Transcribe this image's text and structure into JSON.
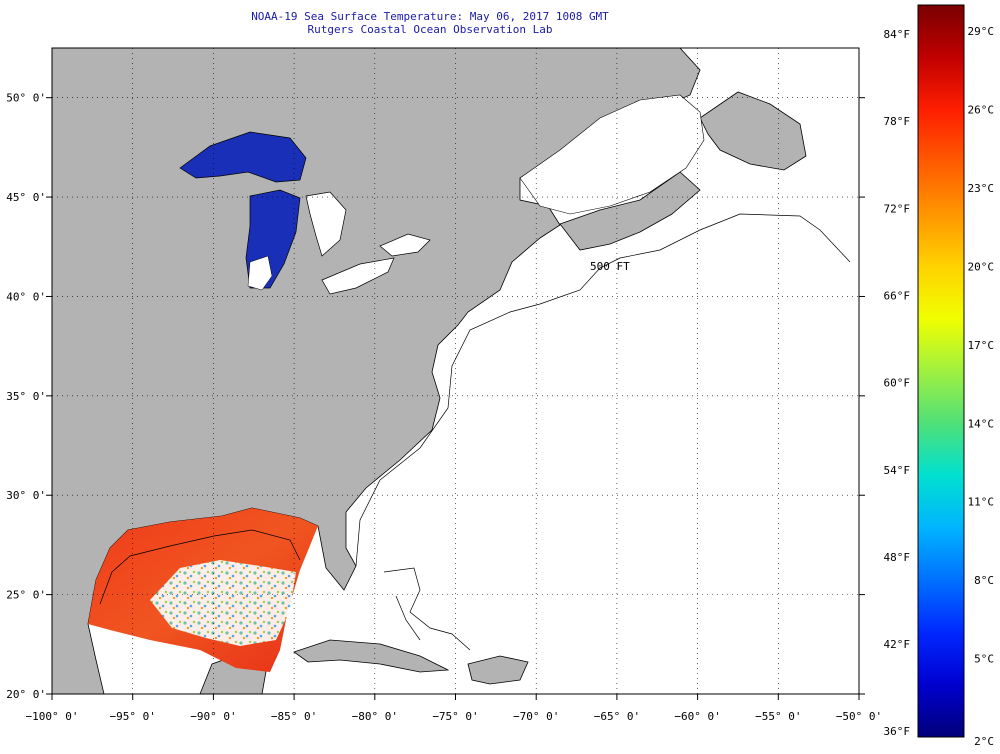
{
  "header": {
    "title": "NOAA-19 Sea Surface Temperature:  May 06, 2017 1008 GMT",
    "subtitle": "Rutgers Coastal Ocean Observation Lab"
  },
  "map": {
    "lon_range": [
      -100,
      -50
    ],
    "lat_range": [
      20,
      52.5
    ],
    "lon_ticks": [
      {
        "value": -100,
        "label": "−100° 0'"
      },
      {
        "value": -95,
        "label": "−95° 0'"
      },
      {
        "value": -90,
        "label": "−90° 0'"
      },
      {
        "value": -85,
        "label": "−85° 0'"
      },
      {
        "value": -80,
        "label": "−80° 0'"
      },
      {
        "value": -75,
        "label": "−75° 0'"
      },
      {
        "value": -70,
        "label": "−70° 0'"
      },
      {
        "value": -65,
        "label": "−65° 0'"
      },
      {
        "value": -60,
        "label": "−60° 0'"
      },
      {
        "value": -55,
        "label": "−55° 0'"
      },
      {
        "value": -50,
        "label": "−50° 0'"
      }
    ],
    "lat_ticks": [
      {
        "value": 20,
        "label": "20° 0'"
      },
      {
        "value": 25,
        "label": "25° 0'"
      },
      {
        "value": 30,
        "label": "30° 0'"
      },
      {
        "value": 35,
        "label": "35° 0'"
      },
      {
        "value": 40,
        "label": "40° 0'"
      },
      {
        "value": 45,
        "label": "45° 0'"
      },
      {
        "value": 50,
        "label": "50° 0'"
      }
    ],
    "contour_label": "500 FT",
    "colors": {
      "land": "#b3b3b3",
      "ocean_no_data": "#ffffff",
      "great_lakes": "#1a2fb8",
      "gulf_sst": "#f04a1e"
    }
  },
  "colorbar": {
    "celsius_labels": [
      {
        "value": 29,
        "label": "29°C"
      },
      {
        "value": 26,
        "label": "26°C"
      },
      {
        "value": 23,
        "label": "23°C"
      },
      {
        "value": 20,
        "label": "20°C"
      },
      {
        "value": 17,
        "label": "17°C"
      },
      {
        "value": 14,
        "label": "14°C"
      },
      {
        "value": 11,
        "label": "11°C"
      },
      {
        "value": 8,
        "label": "8°C"
      },
      {
        "value": 5,
        "label": "5°C"
      },
      {
        "value": 2,
        "label": "2°C"
      }
    ],
    "fahrenheit_labels": [
      {
        "value": 84,
        "label": "84°F"
      },
      {
        "value": 78,
        "label": "78°F"
      },
      {
        "value": 72,
        "label": "72°F"
      },
      {
        "value": 66,
        "label": "66°F"
      },
      {
        "value": 60,
        "label": "60°F"
      },
      {
        "value": 54,
        "label": "54°F"
      },
      {
        "value": 48,
        "label": "48°F"
      },
      {
        "value": 42,
        "label": "42°F"
      },
      {
        "value": 36,
        "label": "36°F"
      }
    ],
    "range_celsius": [
      2,
      30
    ],
    "colors": [
      "#7a0000",
      "#c00000",
      "#ff1e00",
      "#ff5a00",
      "#ff9600",
      "#ffd200",
      "#f0ff00",
      "#a0f040",
      "#50e078",
      "#00e0d0",
      "#00b4ff",
      "#0070ff",
      "#0028ff",
      "#0000d0",
      "#00007a"
    ]
  }
}
